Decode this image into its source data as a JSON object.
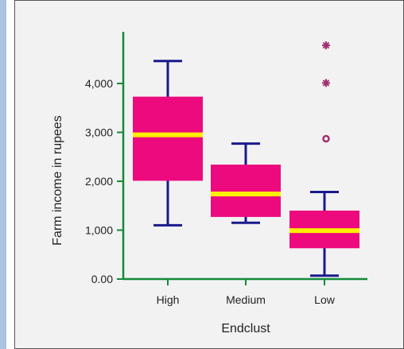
{
  "chart_data": {
    "type": "box",
    "title": "",
    "xlabel": "Endclust",
    "ylabel": "Farm income in rupees",
    "categories": [
      "High",
      "Medium",
      "Low"
    ],
    "yticks": [
      {
        "value": 0,
        "label": "0.00"
      },
      {
        "value": 1000,
        "label": "1,000"
      },
      {
        "value": 2000,
        "label": "2,000"
      },
      {
        "value": 3000,
        "label": "3,000"
      },
      {
        "value": 4000,
        "label": "4,000"
      }
    ],
    "ylim": [
      0,
      5100
    ],
    "boxes": [
      {
        "category": "High",
        "whisker_low": 1100,
        "q1": 2010,
        "median": 2950,
        "q3": 3730,
        "whisker_high": 4460,
        "outliers": [],
        "extremes": []
      },
      {
        "category": "Medium",
        "whisker_low": 1150,
        "q1": 1270,
        "median": 1740,
        "q3": 2340,
        "whisker_high": 2770,
        "outliers": [],
        "extremes": []
      },
      {
        "category": "Low",
        "whisker_low": 70,
        "q1": 630,
        "median": 990,
        "q3": 1400,
        "whisker_high": 1780,
        "outliers": [
          2870
        ],
        "extremes": [
          4010,
          4780
        ]
      }
    ],
    "grid": false,
    "legend": "none",
    "colors": {
      "box_fill": "#ec0a7e",
      "median": "#ffef00",
      "whisker": "#1a1a8c",
      "axis": "#138a3a",
      "outlier": "#a0306f"
    }
  }
}
